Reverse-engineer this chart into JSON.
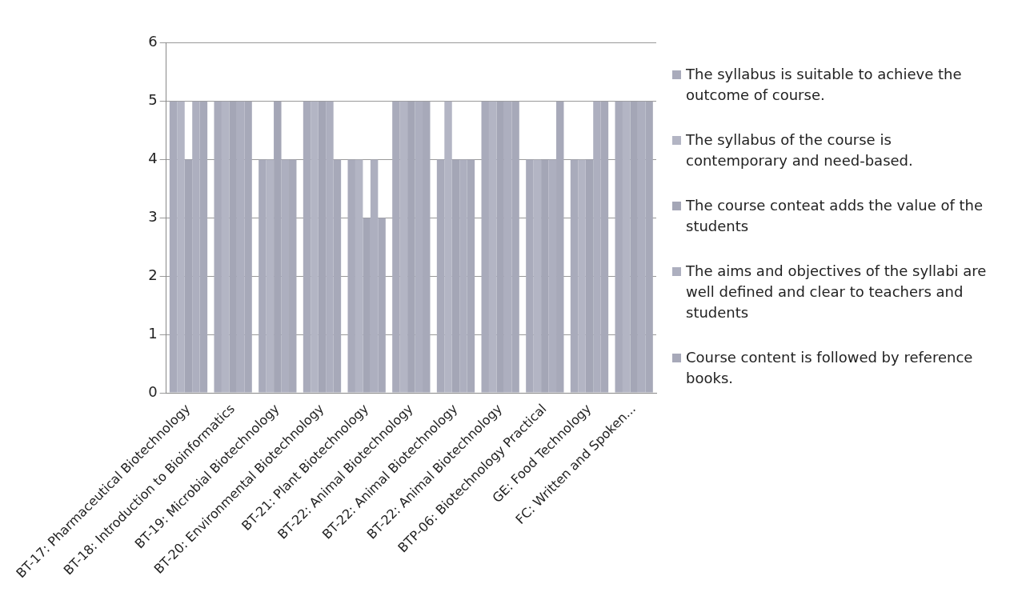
{
  "chart_data": {
    "type": "bar",
    "categories": [
      "BT-17: Pharmaceutical Biotechnology",
      "BT-18: Introduction to Bioinformatics",
      "BT-19: Microbial Biotechnology",
      "BT-20: Environmental Biotechnology",
      "BT-21: Plant Biotechnology",
      "BT-22: Animal Biotechnology",
      "BT-22: Animal Biotechnology",
      "BT-22: Animal Biotechnology",
      "BTP-06: Biotechnology Practical",
      "GE: Food Technology",
      "FC: Written and Spoken..."
    ],
    "series": [
      {
        "name": "The syllabus is suitable to achieve the outcome of course.",
        "color": "#a9abbb",
        "values": [
          5,
          5,
          4,
          5,
          4,
          5,
          4,
          5,
          4,
          4,
          5
        ]
      },
      {
        "name": "The syllabus of the course is contemporary and need-based.",
        "color": "#b3b5c4",
        "values": [
          5,
          5,
          4,
          5,
          4,
          5,
          5,
          5,
          4,
          4,
          5
        ]
      },
      {
        "name": "The course conteat adds the value of the students",
        "color": "#a4a6b6",
        "values": [
          4,
          5,
          5,
          5,
          3,
          5,
          4,
          5,
          4,
          4,
          5
        ]
      },
      {
        "name": "The aims and objectives of the syllabi are well defined and clear to teachers and students",
        "color": "#adafbf",
        "values": [
          5,
          5,
          4,
          5,
          4,
          5,
          4,
          5,
          4,
          5,
          5
        ]
      },
      {
        "name": "Course content is followed by reference books.",
        "color": "#a7a9b9",
        "values": [
          5,
          5,
          4,
          4,
          3,
          5,
          4,
          5,
          5,
          5,
          5
        ]
      }
    ],
    "ylim": [
      0,
      6
    ],
    "yticks": [
      0,
      1,
      2,
      3,
      4,
      5,
      6
    ],
    "grid": "y",
    "legend": "right"
  }
}
